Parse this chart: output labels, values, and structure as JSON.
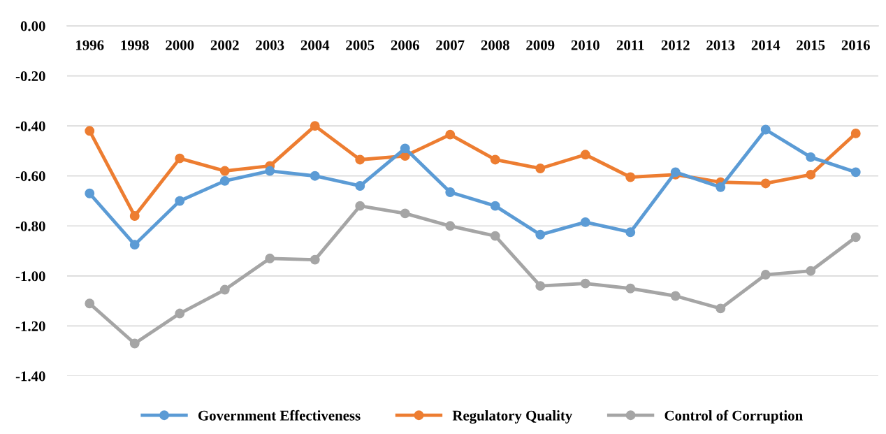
{
  "chart_data": {
    "type": "line",
    "categories": [
      "1996",
      "1998",
      "2000",
      "2002",
      "2003",
      "2004",
      "2005",
      "2006",
      "2007",
      "2008",
      "2009",
      "2010",
      "2011",
      "2012",
      "2013",
      "2014",
      "2015",
      "2016"
    ],
    "series": [
      {
        "name": "Government Effectiveness",
        "color": "#5b9bd5",
        "values": [
          -0.67,
          -0.875,
          -0.7,
          -0.62,
          -0.58,
          -0.6,
          -0.64,
          -0.49,
          -0.665,
          -0.72,
          -0.835,
          -0.785,
          -0.825,
          -0.585,
          -0.645,
          -0.415,
          -0.525,
          -0.585
        ]
      },
      {
        "name": "Regulatory Quality",
        "color": "#ed7d31",
        "values": [
          -0.42,
          -0.76,
          -0.53,
          -0.58,
          -0.56,
          -0.4,
          -0.535,
          -0.52,
          -0.435,
          -0.535,
          -0.57,
          -0.515,
          -0.605,
          -0.595,
          -0.625,
          -0.63,
          -0.595,
          -0.43
        ]
      },
      {
        "name": "Control of Corruption",
        "color": "#a5a5a5",
        "values": [
          -1.11,
          -1.27,
          -1.15,
          -1.055,
          -0.93,
          -0.935,
          -0.72,
          -0.75,
          -0.8,
          -0.84,
          -1.04,
          -1.03,
          -1.05,
          -1.08,
          -1.13,
          -0.995,
          -0.98,
          -0.845
        ]
      }
    ],
    "ylim": [
      -1.4,
      0
    ],
    "yticks": [
      {
        "value": 0,
        "label": "0.00"
      },
      {
        "value": -0.2,
        "label": "-0.20"
      },
      {
        "value": -0.4,
        "label": "-0.40"
      },
      {
        "value": -0.6,
        "label": "-0.60"
      },
      {
        "value": -0.8,
        "label": "-0.80"
      },
      {
        "value": -1.0,
        "label": "-1.00"
      },
      {
        "value": -1.2,
        "label": "-1.20"
      },
      {
        "value": -1.4,
        "label": "-1.40"
      }
    ],
    "grid": "y",
    "legend": "bottom",
    "marker": "circle",
    "line_style": "solid"
  }
}
